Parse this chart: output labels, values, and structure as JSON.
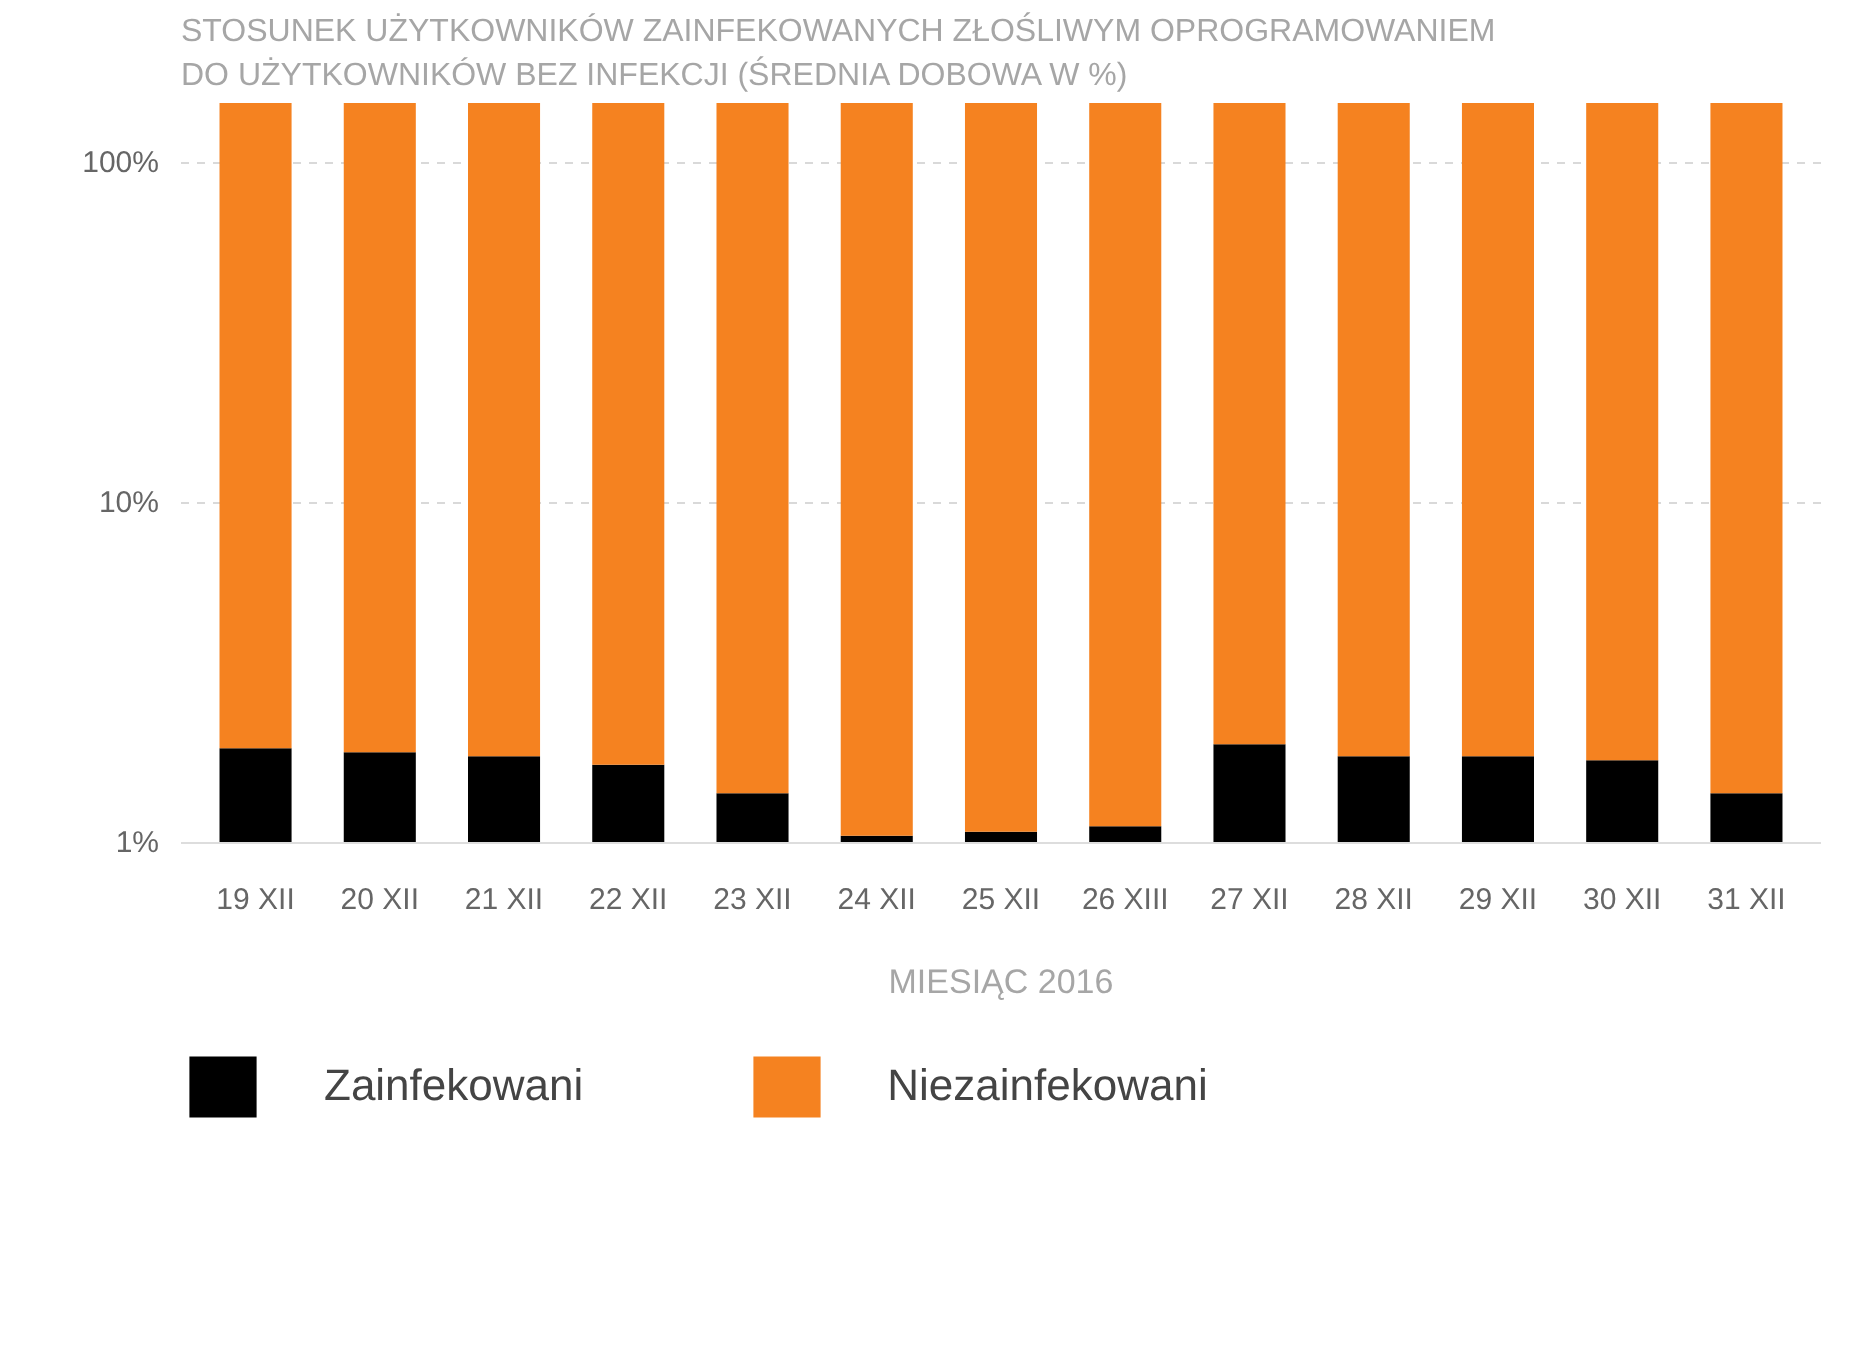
{
  "chart_data": {
    "type": "bar",
    "stacked": true,
    "log": "y",
    "title": "STOSUNEK UŻYTKOWNIKÓW ZAINFEKOWANYCH ZŁOŚLIWYM OPROGRAMOWANIEM\nDO UŻYTKOWNIKÓW BEZ INFEKCJI (ŚREDNIA DOBOWA W %)",
    "xlabel": "MIESIĄC 2016",
    "categories": [
      "19 XII",
      "20 XII",
      "21 XII",
      "22 XII",
      "23 XII",
      "24 XII",
      "25 XII",
      "26 XIII",
      "27 XII",
      "28 XII",
      "29 XII",
      "30 XII",
      "31 XII"
    ],
    "series": [
      {
        "name": "Zainfekowani",
        "color": "#000000",
        "values": [
          1.9,
          1.85,
          1.8,
          1.7,
          1.4,
          1.05,
          1.08,
          1.12,
          1.95,
          1.8,
          1.8,
          1.75,
          1.4
        ]
      },
      {
        "name": "Niezainfekowani",
        "color": "#f58220",
        "values": [
          148.1,
          148.15,
          148.2,
          148.3,
          148.6,
          148.95,
          148.92,
          148.88,
          148.05,
          148.2,
          148.2,
          148.25,
          148.6
        ]
      }
    ],
    "ylim": [
      1,
      150
    ],
    "yticks": [
      {
        "value": 1,
        "label": "1%"
      },
      {
        "value": 10,
        "label": "10%"
      },
      {
        "value": 100,
        "label": "100%"
      }
    ],
    "grid": "y",
    "legend": "bottom"
  }
}
